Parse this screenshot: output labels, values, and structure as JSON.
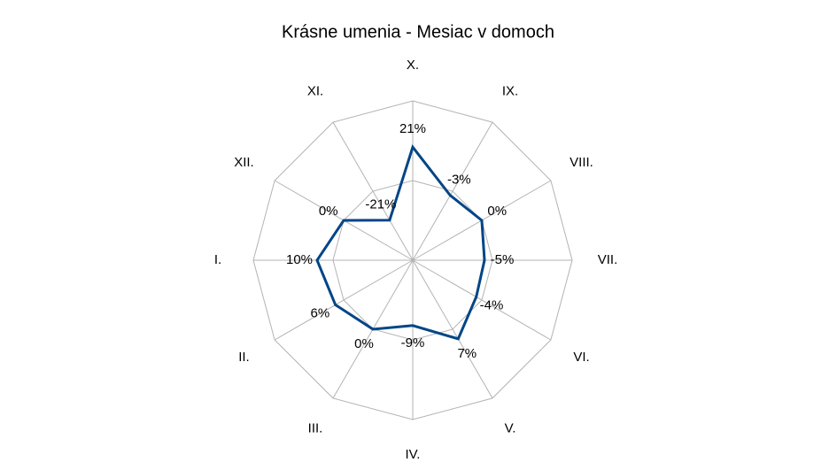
{
  "chart_data": {
    "type": "radar",
    "title": "Krásne umenia - Mesiac v domoch",
    "categories": [
      "X.",
      "IX.",
      "VIII.",
      "VII.",
      "VI.",
      "V.",
      "IV.",
      "III.",
      "II.",
      "I.",
      "XII.",
      "XI."
    ],
    "series": [
      {
        "color": "#004586",
        "values": [
          21,
          -3,
          0,
          -5,
          -4,
          7,
          -9,
          0,
          6,
          10,
          0,
          -21
        ],
        "value_labels": [
          "21%",
          "-3%",
          "0%",
          "-5%",
          "-4%",
          "7%",
          "-9%",
          "0%",
          "6%",
          "10%",
          "0%",
          "-21%"
        ]
      }
    ],
    "ylim": [
      -50,
      50
    ],
    "yticks": [
      -50,
      0,
      50
    ],
    "grid": true,
    "grid_color": "#b3b3b3"
  }
}
